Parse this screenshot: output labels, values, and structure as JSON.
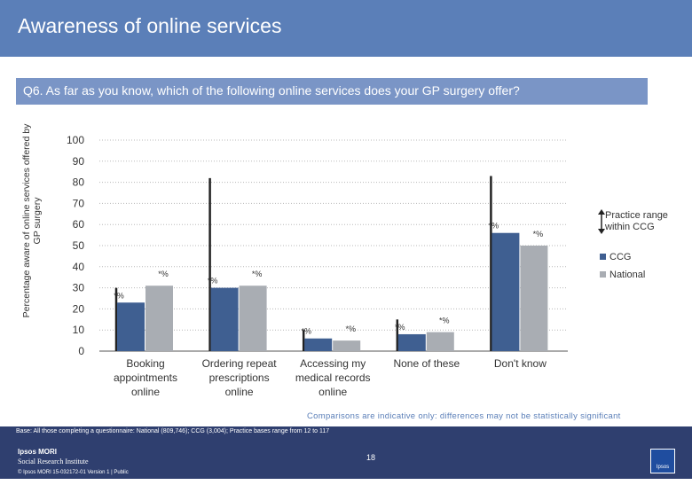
{
  "header": {
    "title": "Awareness of online services"
  },
  "question": "Q6. As far as you know, which of the following online services does your GP surgery offer?",
  "chart_data": {
    "type": "bar",
    "ylabel": "Percentage aware of online services offered by GP surgery",
    "ylim": [
      0,
      100
    ],
    "yticks": [
      0,
      10,
      20,
      30,
      40,
      50,
      60,
      70,
      80,
      90,
      100
    ],
    "categories": [
      "Booking appointments online",
      "Ordering repeat prescriptions online",
      "Accessing my medical records online",
      "None of these",
      "Don't know"
    ],
    "category_lines": [
      [
        "Booking",
        "appointments",
        "online"
      ],
      [
        "Ordering repeat",
        "prescriptions",
        "online"
      ],
      [
        "Accessing my",
        "medical records",
        "online"
      ],
      [
        "None of these"
      ],
      [
        "Don't know"
      ]
    ],
    "series": [
      {
        "name": "CCG",
        "values": [
          23,
          30,
          6,
          8,
          56
        ],
        "color": "#3f5f91",
        "labels": [
          "*%",
          "*%",
          "*%",
          "*%",
          "*%"
        ]
      },
      {
        "name": "National",
        "values": [
          31,
          31,
          5,
          9,
          50
        ],
        "color": "#a9adb3",
        "labels": [
          "*%",
          "*%",
          "*%",
          "*%",
          "*%"
        ]
      }
    ],
    "practice_range": [
      [
        0,
        30
      ],
      [
        0,
        82
      ],
      [
        0,
        10
      ],
      [
        0,
        15
      ],
      [
        0,
        83
      ]
    ],
    "legend": {
      "range_label": "Practice range within CCG",
      "ccg_label": "CCG",
      "national_label": "National"
    },
    "grid": true
  },
  "note": "Comparisons are indicative only: differences may not be statistically significant",
  "footer": {
    "base": "Base: All those completing a questionnaire: National (809,746); CCG (3,004); Practice bases range from 12 to 117",
    "page": "18",
    "logo_line1": "Ipsos MORI",
    "logo_line2": "Social Research Institute",
    "copyright": "© Ipsos MORI   15-032172-01 Version 1 | Public",
    "badge": "Ipsos"
  }
}
